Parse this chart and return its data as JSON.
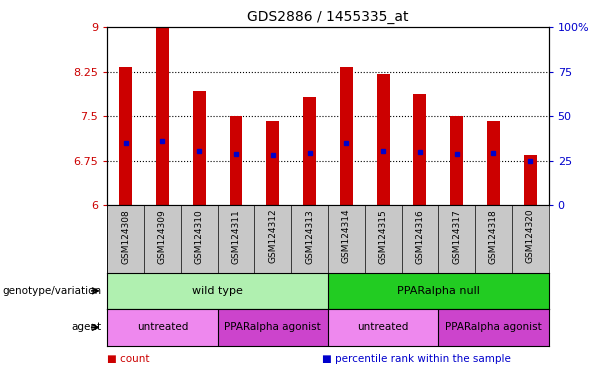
{
  "title": "GDS2886 / 1455335_at",
  "samples": [
    "GSM124308",
    "GSM124309",
    "GSM124310",
    "GSM124311",
    "GSM124312",
    "GSM124313",
    "GSM124314",
    "GSM124315",
    "GSM124316",
    "GSM124317",
    "GSM124318",
    "GSM124320"
  ],
  "bar_values": [
    8.32,
    9.0,
    7.92,
    7.5,
    7.42,
    7.82,
    8.32,
    8.2,
    7.88,
    7.5,
    7.42,
    6.85
  ],
  "percentile_values": [
    7.05,
    7.08,
    6.92,
    6.87,
    6.85,
    6.88,
    7.05,
    6.92,
    6.9,
    6.87,
    6.88,
    6.75
  ],
  "bar_bottom": 6.0,
  "ylim_left": [
    6.0,
    9.0
  ],
  "ylim_right": [
    0,
    100
  ],
  "yticks_left": [
    6.0,
    6.75,
    7.5,
    8.25,
    9.0
  ],
  "ytick_labels_left": [
    "6",
    "6.75",
    "7.5",
    "8.25",
    "9"
  ],
  "yticks_right": [
    0,
    25,
    50,
    75,
    100
  ],
  "ytick_labels_right": [
    "0",
    "25",
    "50",
    "75",
    "100%"
  ],
  "bar_color": "#cc0000",
  "dot_color": "#0000cc",
  "plot_bg": "#ffffff",
  "xlabels_bg": "#c8c8c8",
  "genotype_groups": [
    {
      "label": "wild type",
      "start": 0,
      "end": 6,
      "color": "#b0f0b0"
    },
    {
      "label": "PPARalpha null",
      "start": 6,
      "end": 12,
      "color": "#22cc22"
    }
  ],
  "agent_groups": [
    {
      "label": "untreated",
      "start": 0,
      "end": 3,
      "color": "#ee88ee"
    },
    {
      "label": "PPARalpha agonist",
      "start": 3,
      "end": 6,
      "color": "#cc44cc"
    },
    {
      "label": "untreated",
      "start": 6,
      "end": 9,
      "color": "#ee88ee"
    },
    {
      "label": "PPARalpha agonist",
      "start": 9,
      "end": 12,
      "color": "#cc44cc"
    }
  ],
  "left_labels": [
    "genotype/variation",
    "agent"
  ],
  "legend_items": [
    {
      "label": "count",
      "color": "#cc0000"
    },
    {
      "label": "percentile rank within the sample",
      "color": "#0000cc"
    }
  ],
  "bar_width": 0.35
}
